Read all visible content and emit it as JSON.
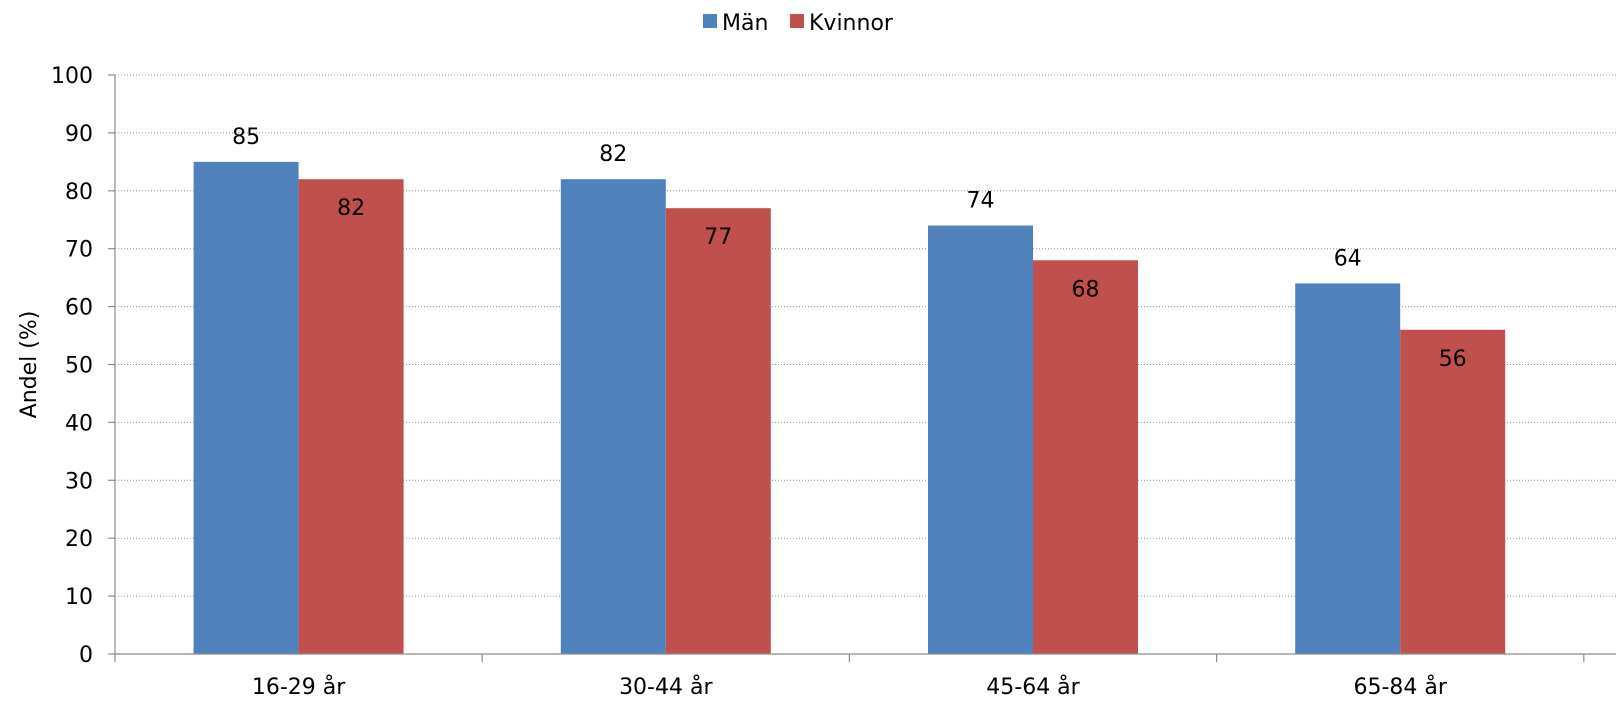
{
  "chart_data": {
    "type": "bar",
    "categories": [
      "16-29 år",
      "30-44 år",
      "45-64 år",
      "65-84 år"
    ],
    "series": [
      {
        "name": "Män",
        "values": [
          85,
          82,
          74,
          64
        ],
        "value_labels": [
          "85",
          "82",
          "74",
          "64"
        ],
        "color": "#4f81bd"
      },
      {
        "name": "Kvinnor",
        "values": [
          82,
          77,
          68,
          56
        ],
        "value_labels": [
          "82",
          "77",
          "68",
          "56"
        ],
        "color": "#c0504d"
      }
    ],
    "title": "",
    "xlabel": "",
    "ylabel": "Andel (%)",
    "ylim": [
      0,
      100
    ],
    "yticks": [
      "0",
      "10",
      "20",
      "30",
      "40",
      "50",
      "60",
      "70",
      "80",
      "90",
      "100"
    ],
    "grid": true,
    "legend_position": "top-center"
  }
}
